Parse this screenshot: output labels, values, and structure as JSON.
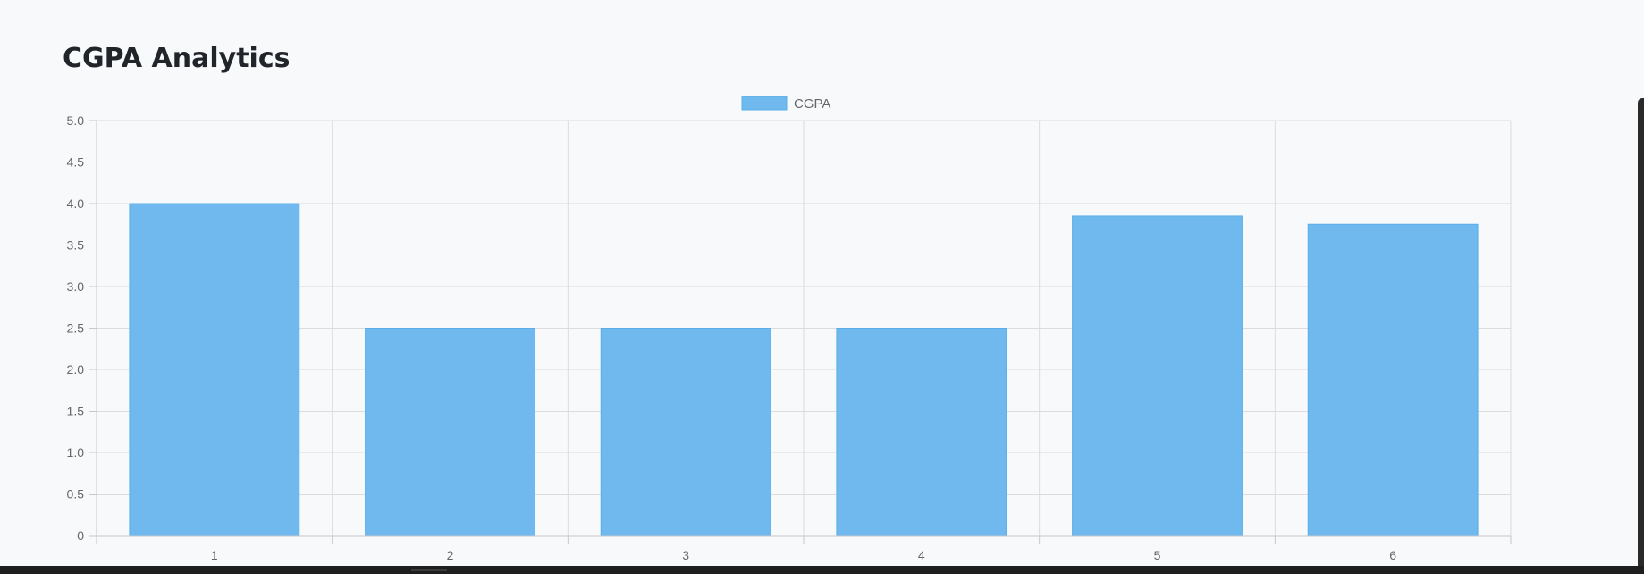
{
  "page": {
    "title": "CGPA Analytics"
  },
  "chart_data": {
    "type": "bar",
    "title": "",
    "xlabel": "",
    "ylabel": "",
    "categories": [
      "1",
      "2",
      "3",
      "4",
      "5",
      "6"
    ],
    "series": [
      {
        "name": "CGPA",
        "values": [
          4.0,
          2.5,
          2.5,
          2.5,
          3.85,
          3.75
        ]
      }
    ],
    "ylim": [
      0,
      5
    ],
    "yticks": [
      "0",
      "0.5",
      "1.0",
      "1.5",
      "2.0",
      "2.5",
      "3.0",
      "3.5",
      "4.0",
      "4.5",
      "5.0"
    ],
    "grid": true,
    "legend_position": "top-center",
    "colors": {
      "bar_fill": "#6fb9ee",
      "bar_stroke": "#5aaee9",
      "grid": "#dcdcdc",
      "axis": "#c8c8c8"
    }
  }
}
